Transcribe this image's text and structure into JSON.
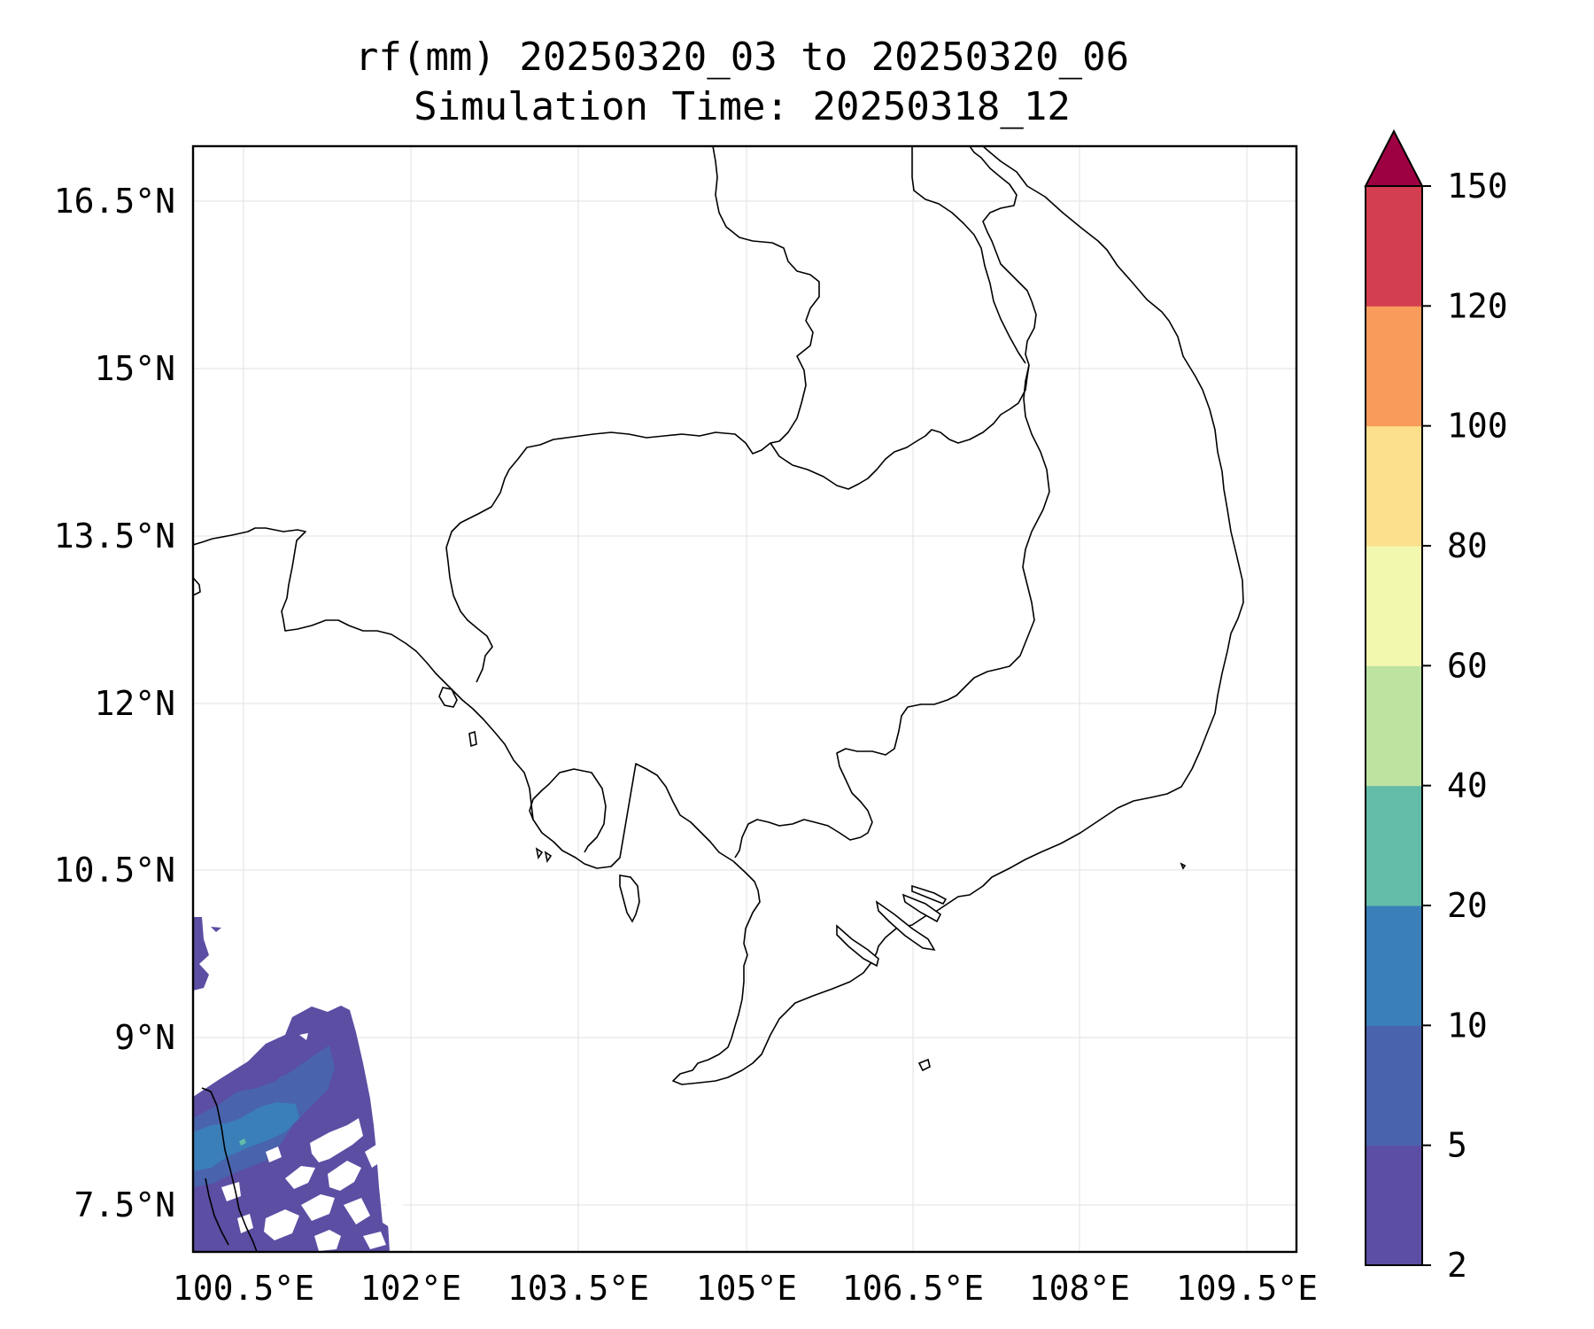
{
  "chart_data": {
    "type": "map-contour",
    "title_line1": "rf(mm) 20250320_03 to 20250320_06",
    "title_line2": "Simulation Time: 20250318_12",
    "x_ticks": [
      "100.5°E",
      "102°E",
      "103.5°E",
      "105°E",
      "106.5°E",
      "108°E",
      "109.5°E"
    ],
    "y_ticks": [
      "16.5°N",
      "15°N",
      "13.5°N",
      "12°N",
      "10.5°N",
      "9°N",
      "7.5°N"
    ],
    "lon_range": [
      100.5,
      110.4
    ],
    "lat_range": [
      7.0,
      17.0
    ],
    "grid": true,
    "colorbar": {
      "levels": [
        "2",
        "5",
        "10",
        "20",
        "40",
        "60",
        "80",
        "100",
        "120",
        "150"
      ],
      "colors": [
        "#5b4ea3",
        "#4a63ad",
        "#3a7fb8",
        "#63bca8",
        "#bde3a1",
        "#f2f8ae",
        "#fbdf8c",
        "#f99b5a",
        "#d33f50",
        "#9e0142"
      ],
      "extend": "max"
    },
    "rain_regions": [
      {
        "level": "2-5 mm",
        "area": "southwest corner, Gulf of Thailand / Malay Peninsula near 7-9°N, 100.5-102°E"
      },
      {
        "level": "5-10 mm",
        "area": "embedded patches near 8°N, 101°E"
      },
      {
        "level": "10-20 mm",
        "area": "small core near 8°N, 100.5-101.2°E"
      }
    ]
  }
}
